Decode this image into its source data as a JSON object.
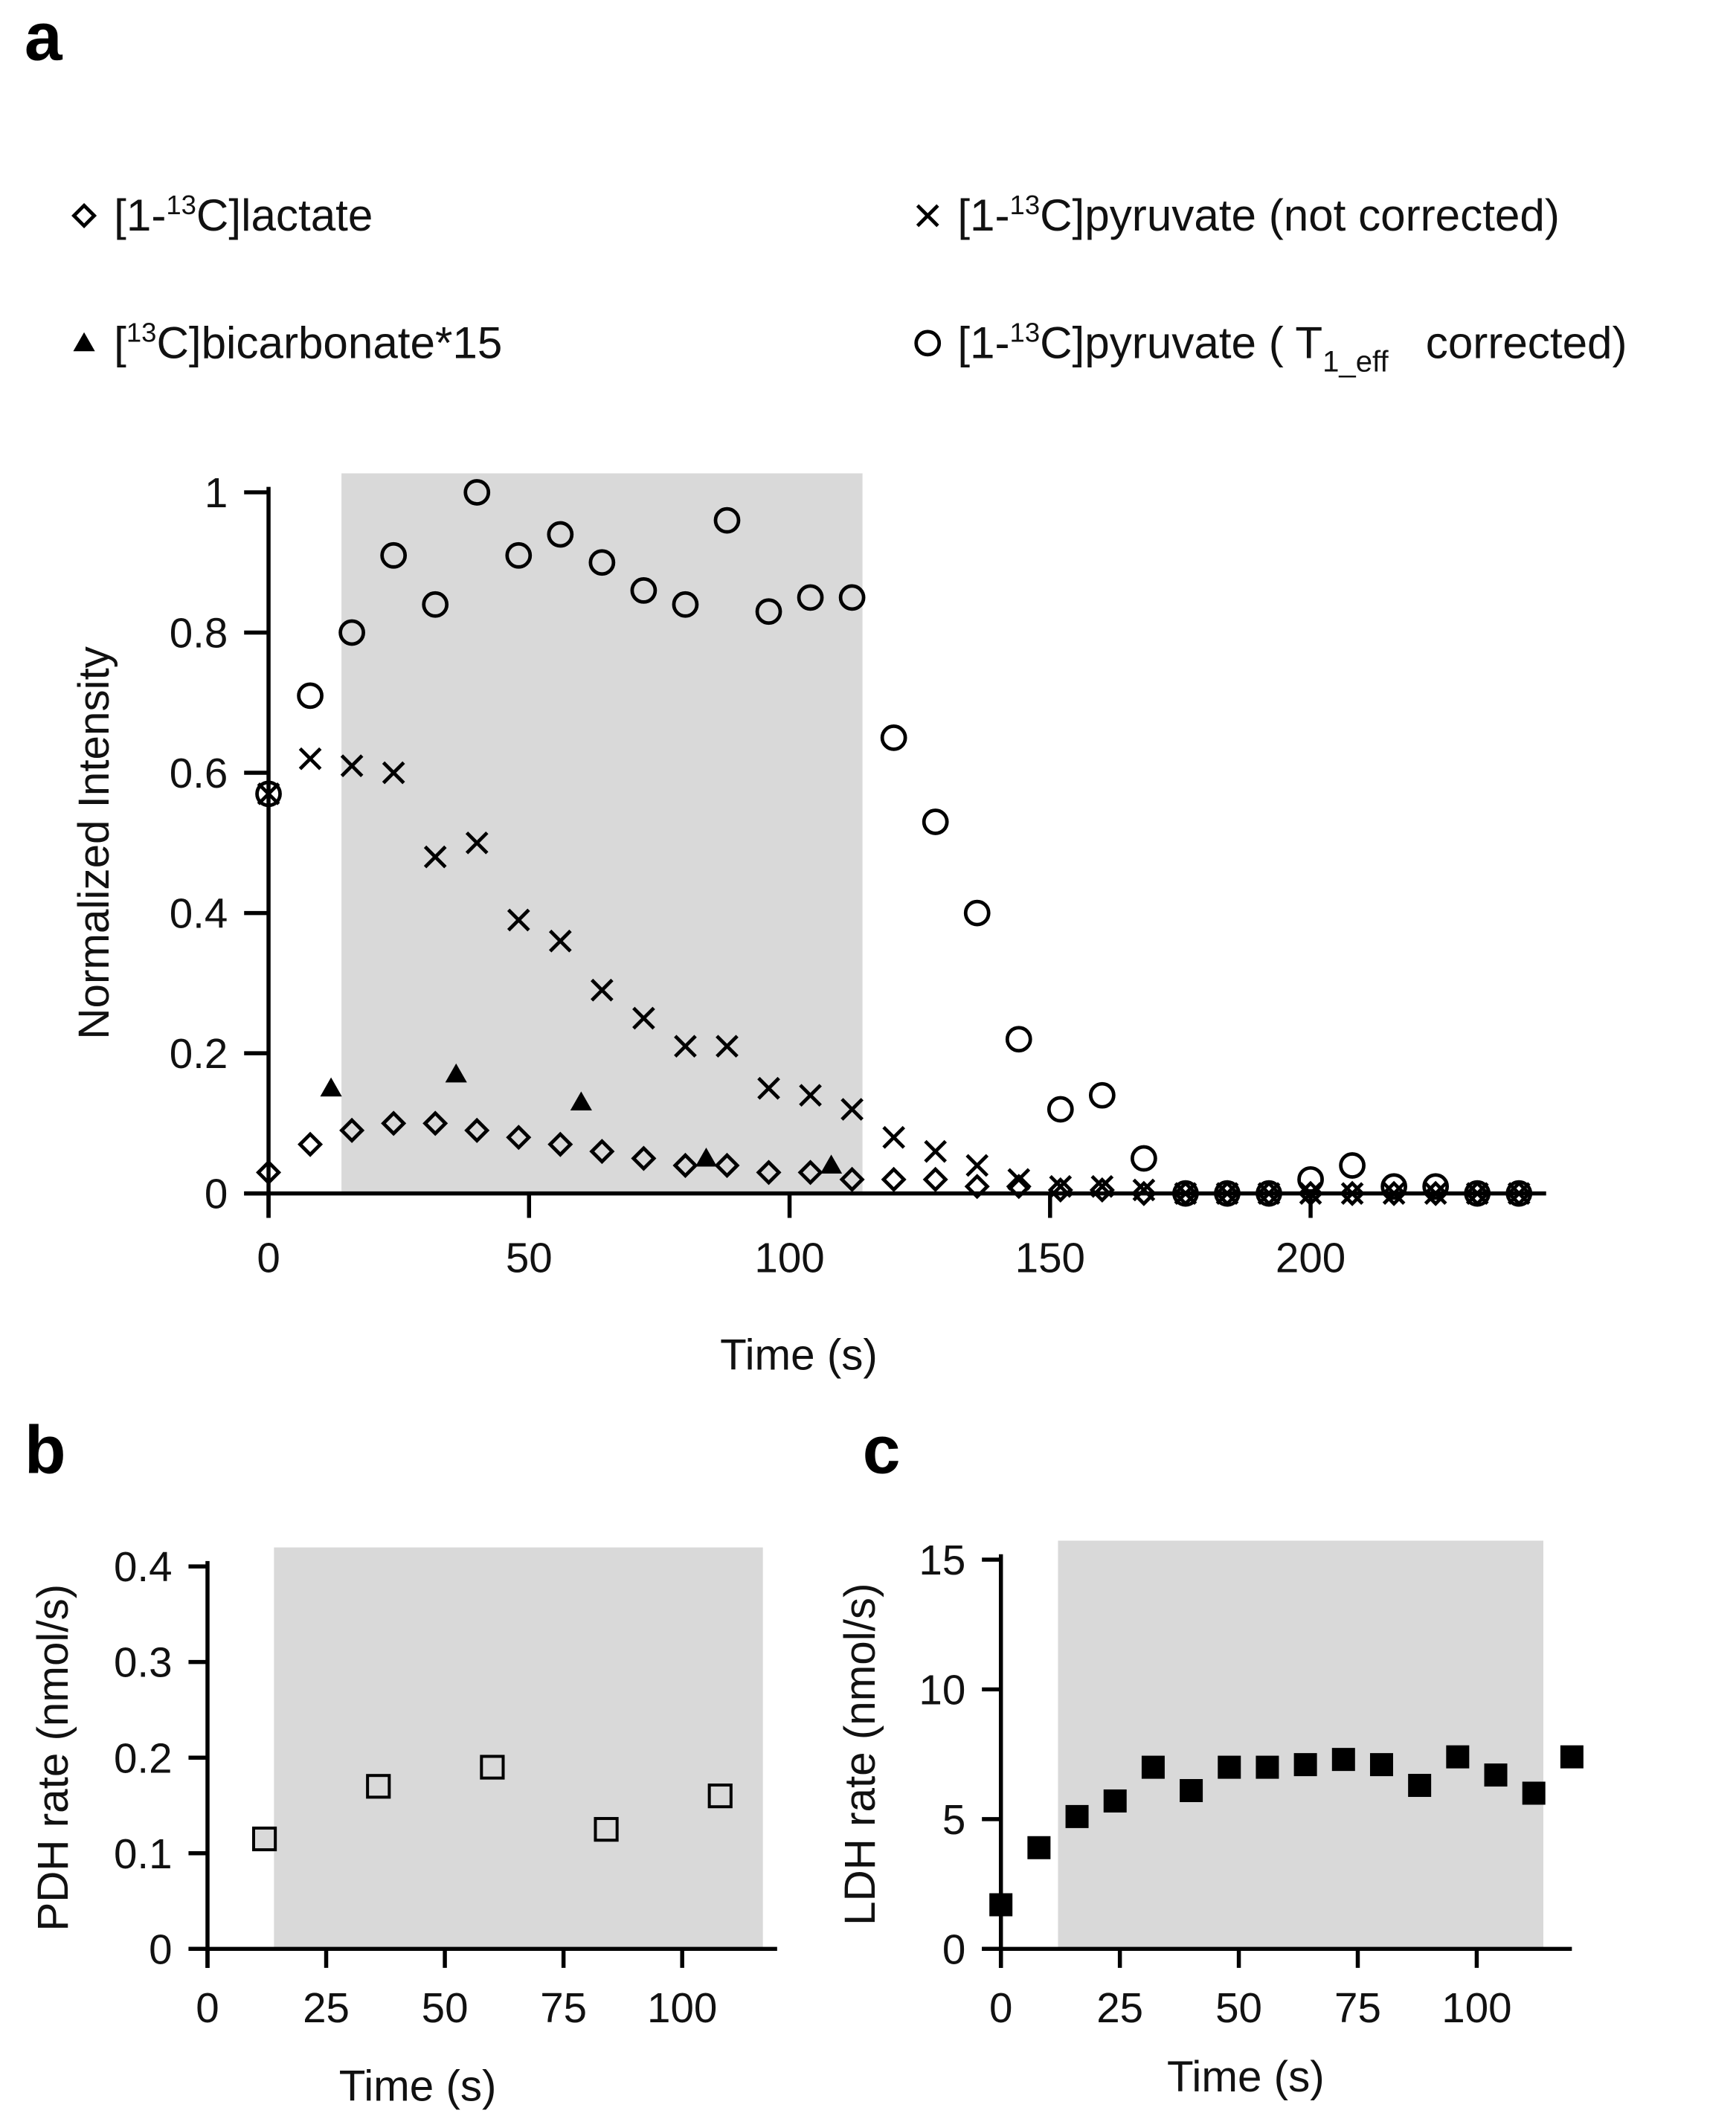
{
  "colors": {
    "shade": "#d9d9d9",
    "ink": "#000000",
    "background": "#ffffff"
  },
  "chart_data": [
    {
      "panel": "a",
      "type": "scatter",
      "xlabel": "Time (s)",
      "ylabel": "Normalized Intensity",
      "xlim": [
        0,
        240
      ],
      "ylim": [
        0,
        1
      ],
      "xticks": [
        0,
        50,
        100,
        150,
        200
      ],
      "yticks": [
        0,
        0.2,
        0.4,
        0.6,
        0.8,
        1
      ],
      "shaded_x_range": [
        14,
        114
      ],
      "legend_placement": "top",
      "legend": [
        {
          "marker": "diamond",
          "parts": [
            [
              "[1-",
              ""
            ],
            [
              "13",
              "sup"
            ],
            [
              "C]lactate",
              ""
            ]
          ]
        },
        {
          "marker": "x",
          "parts": [
            [
              "[1-",
              ""
            ],
            [
              "13",
              "sup"
            ],
            [
              "C]pyruvate (not corrected)",
              ""
            ]
          ]
        },
        {
          "marker": "triangle",
          "parts": [
            [
              "[",
              ""
            ],
            [
              "13",
              "sup"
            ],
            [
              "C]bicarbonate*15",
              ""
            ]
          ]
        },
        {
          "marker": "circle",
          "parts": [
            [
              "[1-",
              ""
            ],
            [
              "13",
              "sup"
            ],
            [
              "C]pyruvate ( T",
              ""
            ],
            [
              "1_eff",
              "sub"
            ],
            [
              "   corrected)",
              ""
            ]
          ]
        }
      ],
      "series": [
        {
          "name": "[1-13C]lactate",
          "marker": "diamond",
          "x": [
            0,
            8,
            16,
            24,
            32,
            40,
            48,
            56,
            64,
            72,
            80,
            88,
            96,
            104,
            112,
            120,
            128,
            136,
            144,
            152,
            160,
            168,
            176,
            184,
            192,
            200,
            208,
            216,
            224,
            232,
            240
          ],
          "y": [
            0.03,
            0.07,
            0.09,
            0.1,
            0.1,
            0.09,
            0.08,
            0.07,
            0.06,
            0.05,
            0.04,
            0.04,
            0.03,
            0.03,
            0.02,
            0.02,
            0.02,
            0.01,
            0.01,
            0.005,
            0.005,
            0,
            0,
            0,
            0,
            0,
            0,
            0,
            0,
            0,
            0
          ]
        },
        {
          "name": "[1-13C]pyruvate (not corrected)",
          "marker": "x",
          "x": [
            0,
            8,
            16,
            24,
            32,
            40,
            48,
            56,
            64,
            72,
            80,
            88,
            96,
            104,
            112,
            120,
            128,
            136,
            144,
            152,
            160,
            168,
            176,
            184,
            192,
            200,
            208,
            216,
            224,
            232,
            240
          ],
          "y": [
            0.57,
            0.62,
            0.61,
            0.6,
            0.48,
            0.5,
            0.39,
            0.36,
            0.29,
            0.25,
            0.21,
            0.21,
            0.15,
            0.14,
            0.12,
            0.08,
            0.06,
            0.04,
            0.02,
            0.01,
            0.01,
            0.005,
            0,
            0,
            0,
            0,
            0,
            0,
            0,
            0,
            0
          ]
        },
        {
          "name": "[13C]bicarbonate*15",
          "marker": "triangle",
          "x": [
            12,
            36,
            60,
            84,
            108
          ],
          "y": [
            0.15,
            0.17,
            0.13,
            0.05,
            0.04
          ]
        },
        {
          "name": "[1-13C]pyruvate (T1_eff corrected)",
          "marker": "circle",
          "x": [
            0,
            8,
            16,
            24,
            32,
            40,
            48,
            56,
            64,
            72,
            80,
            88,
            96,
            104,
            112,
            120,
            128,
            136,
            144,
            152,
            160,
            168,
            176,
            184,
            192,
            200,
            208,
            216,
            224,
            232,
            240
          ],
          "y": [
            0.57,
            0.71,
            0.8,
            0.91,
            0.84,
            1.0,
            0.91,
            0.94,
            0.9,
            0.86,
            0.84,
            0.96,
            0.83,
            0.85,
            0.85,
            0.65,
            0.53,
            0.4,
            0.22,
            0.12,
            0.14,
            0.05,
            0,
            0,
            0,
            0.02,
            0.04,
            0.01,
            0.01,
            0,
            0
          ]
        }
      ]
    },
    {
      "panel": "b",
      "type": "scatter",
      "xlabel": "Time (s)",
      "ylabel": "PDH rate (nmol/s)",
      "xlim": [
        0,
        120
      ],
      "ylim": [
        0,
        0.4
      ],
      "xticks": [
        0,
        25,
        50,
        75,
        100
      ],
      "yticks": [
        0,
        0.1,
        0.2,
        0.3,
        0.4
      ],
      "shaded_x_range": [
        14,
        117
      ],
      "series": [
        {
          "name": "PDH rate",
          "marker": "open-square",
          "x": [
            12,
            36,
            60,
            84,
            108
          ],
          "y": [
            0.115,
            0.17,
            0.19,
            0.125,
            0.16
          ]
        }
      ]
    },
    {
      "panel": "c",
      "type": "scatter",
      "xlabel": "Time (s)",
      "ylabel": "LDH rate (nmol/s)",
      "xlim": [
        0,
        120
      ],
      "ylim": [
        0,
        15
      ],
      "xticks": [
        0,
        25,
        50,
        75,
        100
      ],
      "yticks": [
        0,
        5,
        10,
        15
      ],
      "shaded_x_range": [
        12,
        114
      ],
      "series": [
        {
          "name": "LDH rate",
          "marker": "filled-square",
          "x": [
            0,
            8,
            16,
            24,
            32,
            40,
            48,
            56,
            64,
            72,
            80,
            88,
            96,
            104,
            112,
            120
          ],
          "y": [
            1.7,
            3.9,
            5.1,
            5.7,
            7.0,
            6.1,
            7.0,
            7.0,
            7.1,
            7.3,
            7.1,
            6.3,
            7.4,
            6.7,
            6.0,
            7.4
          ]
        }
      ]
    }
  ]
}
